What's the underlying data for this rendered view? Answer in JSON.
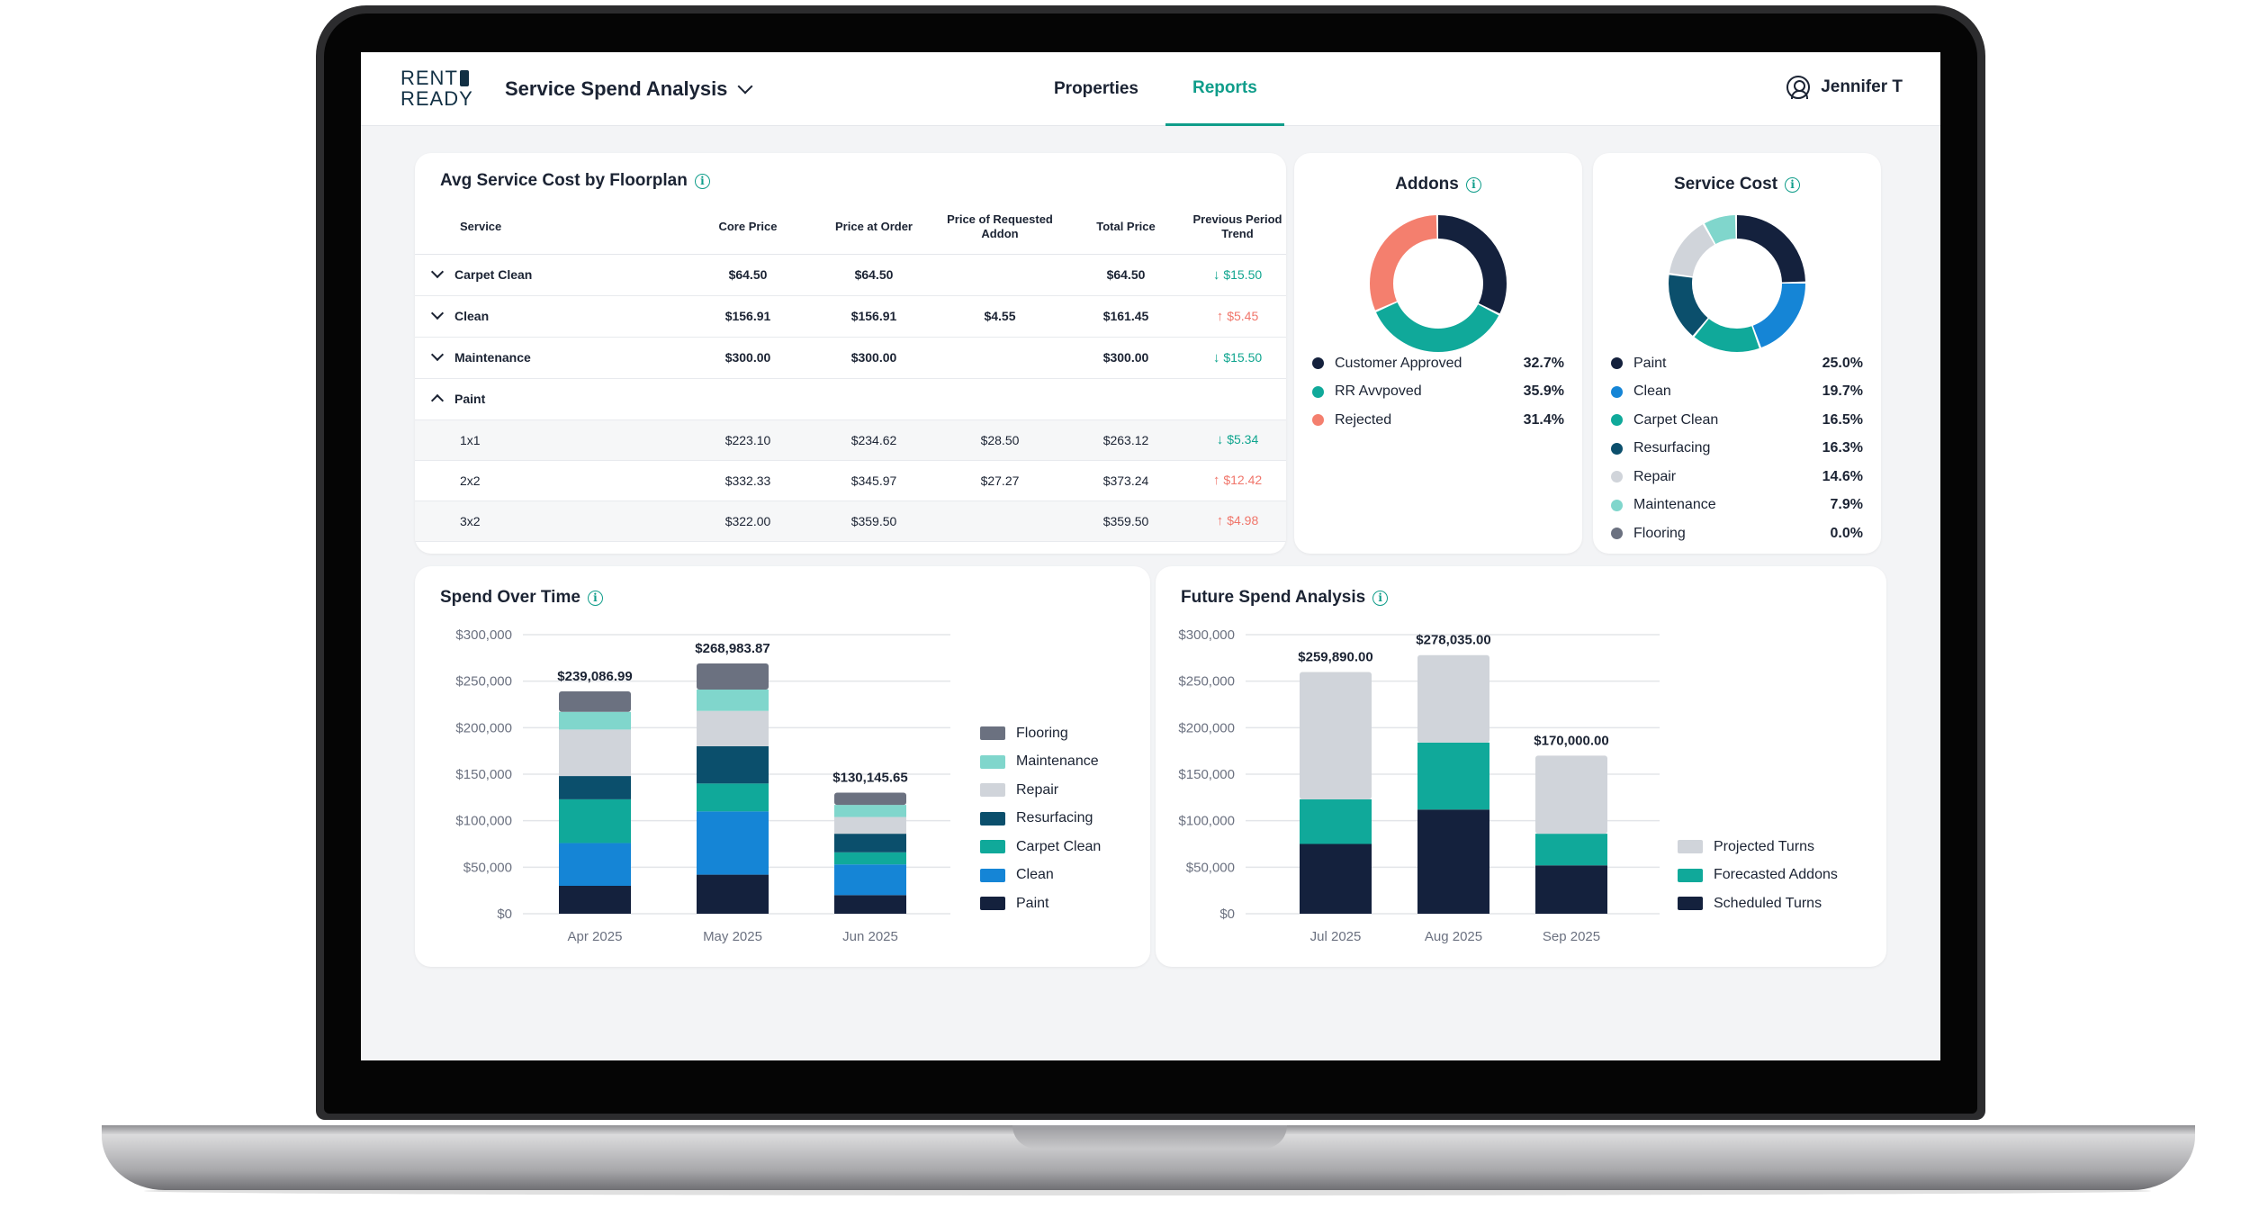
{
  "header": {
    "logo_line1": "RENT",
    "logo_line2": "READY",
    "title": "Service Spend Analysis",
    "nav": [
      {
        "label": "Properties",
        "active": false
      },
      {
        "label": "Reports",
        "active": true
      }
    ],
    "user_name": "Jennifer T"
  },
  "floorplan_table": {
    "title": "Avg Service Cost by Floorplan",
    "columns": {
      "service": "Service",
      "core_price": "Core Price",
      "price_at_order": "Price at Order",
      "requested_addon": "Price of Requested Addon",
      "total_price": "Total Price",
      "trend": "Previous Period Trend"
    },
    "rows": [
      {
        "service": "Carpet Clean",
        "core": "$64.50",
        "order": "$64.50",
        "addon": "",
        "total": "$64.50",
        "trend": "$15.50",
        "direction": "down",
        "expanded": false
      },
      {
        "service": "Clean",
        "core": "$156.91",
        "order": "$156.91",
        "addon": "$4.55",
        "total": "$161.45",
        "trend": "$5.45",
        "direction": "up",
        "expanded": false
      },
      {
        "service": "Maintenance",
        "core": "$300.00",
        "order": "$300.00",
        "addon": "",
        "total": "$300.00",
        "trend": "$15.50",
        "direction": "down",
        "expanded": false
      },
      {
        "service": "Paint",
        "core": "",
        "order": "",
        "addon": "",
        "total": "",
        "trend": "",
        "direction": "",
        "expanded": true
      }
    ],
    "sub_rows": [
      {
        "service": "1x1",
        "core": "$223.10",
        "order": "$234.62",
        "addon": "$28.50",
        "total": "$263.12",
        "trend": "$5.34",
        "direction": "down"
      },
      {
        "service": "2x2",
        "core": "$332.33",
        "order": "$345.97",
        "addon": "$27.27",
        "total": "$373.24",
        "trend": "$12.42",
        "direction": "up"
      },
      {
        "service": "3x2",
        "core": "$322.00",
        "order": "$359.50",
        "addon": "",
        "total": "$359.50",
        "trend": "$4.98",
        "direction": "up"
      }
    ]
  },
  "colors": {
    "navy": "#14213d",
    "teal": "#10a99a",
    "coral": "#f47f6e",
    "blue": "#1585d6",
    "dark_teal": "#0b4f6c",
    "light_gray": "#d0d4da",
    "mint": "#80d6cc",
    "slate": "#6b7180",
    "accent": "#0f9d8a",
    "trend_down": "#10a58f",
    "trend_up": "#f0766b"
  },
  "chart_data": [
    {
      "type": "pie",
      "title": "Addons",
      "labels": [
        "Customer Approved",
        "RR Avvpoved",
        "Rejected"
      ],
      "values": [
        32.7,
        35.9,
        31.4
      ],
      "value_labels": [
        "32.7%",
        "35.9%",
        "31.4%"
      ],
      "colors": [
        "#14213d",
        "#10a99a",
        "#f47f6e"
      ],
      "legend": "bottom"
    },
    {
      "type": "pie",
      "title": "Service Cost",
      "labels": [
        "Paint",
        "Clean",
        "Carpet Clean",
        "Resurfacing",
        "Repair",
        "Maintenance",
        "Flooring"
      ],
      "values": [
        25.0,
        19.7,
        16.5,
        16.3,
        14.6,
        7.9,
        0.0
      ],
      "value_labels": [
        "25.0%",
        "19.7%",
        "16.5%",
        "16.3%",
        "14.6%",
        "7.9%",
        "0.0%"
      ],
      "colors": [
        "#14213d",
        "#1585d6",
        "#10a99a",
        "#0b4f6c",
        "#d0d4da",
        "#80d6cc",
        "#6b7180"
      ],
      "legend": "bottom"
    },
    {
      "type": "bar",
      "stacked": true,
      "title": "Spend Over Time",
      "categories": [
        "Apr 2025",
        "May 2025",
        "Jun 2025"
      ],
      "yticks": [
        "$0",
        "$50,000",
        "$100,000",
        "$150,000",
        "$200,000",
        "$250,000",
        "$300,000"
      ],
      "ylim": [
        0,
        300000
      ],
      "totals": [
        "$239,086.99",
        "$268,983.87",
        "$130,145.65"
      ],
      "total_values": [
        239086.99,
        268983.87,
        130145.65
      ],
      "legend": "right",
      "series": [
        {
          "name": "Paint",
          "color": "#14213d",
          "values": [
            30000,
            42000,
            20000
          ]
        },
        {
          "name": "Clean",
          "color": "#1585d6",
          "values": [
            46000,
            68000,
            33000
          ]
        },
        {
          "name": "Carpet Clean",
          "color": "#10a99a",
          "values": [
            47000,
            30000,
            13000
          ]
        },
        {
          "name": "Resurfacing",
          "color": "#0b4f6c",
          "values": [
            25000,
            40000,
            20000
          ]
        },
        {
          "name": "Repair",
          "color": "#d0d4da",
          "values": [
            50000,
            38000,
            18000
          ]
        },
        {
          "name": "Maintenance",
          "color": "#80d6cc",
          "values": [
            19000,
            23000,
            13000
          ]
        },
        {
          "name": "Flooring",
          "color": "#6b7180",
          "values": [
            22087,
            27984,
            13146
          ]
        }
      ]
    },
    {
      "type": "bar",
      "stacked": true,
      "title": "Future Spend Analysis",
      "categories": [
        "Jul 2025",
        "Aug 2025",
        "Sep 2025"
      ],
      "yticks": [
        "$0",
        "$50,000",
        "$100,000",
        "$150,000",
        "$200,000",
        "$250,000",
        "$300,000"
      ],
      "ylim": [
        0,
        300000
      ],
      "totals": [
        "$259,890.00",
        "$278,035.00",
        "$170,000.00"
      ],
      "total_values": [
        259890,
        278035,
        170000
      ],
      "legend": "right",
      "series": [
        {
          "name": "Scheduled Turns",
          "color": "#14213d",
          "values": [
            75000,
            112000,
            52000
          ]
        },
        {
          "name": "Forecasted Addons",
          "color": "#10a99a",
          "values": [
            48000,
            72000,
            34000
          ]
        },
        {
          "name": "Projected Turns",
          "color": "#d0d4da",
          "values": [
            136890,
            94035,
            84000
          ]
        }
      ]
    }
  ]
}
